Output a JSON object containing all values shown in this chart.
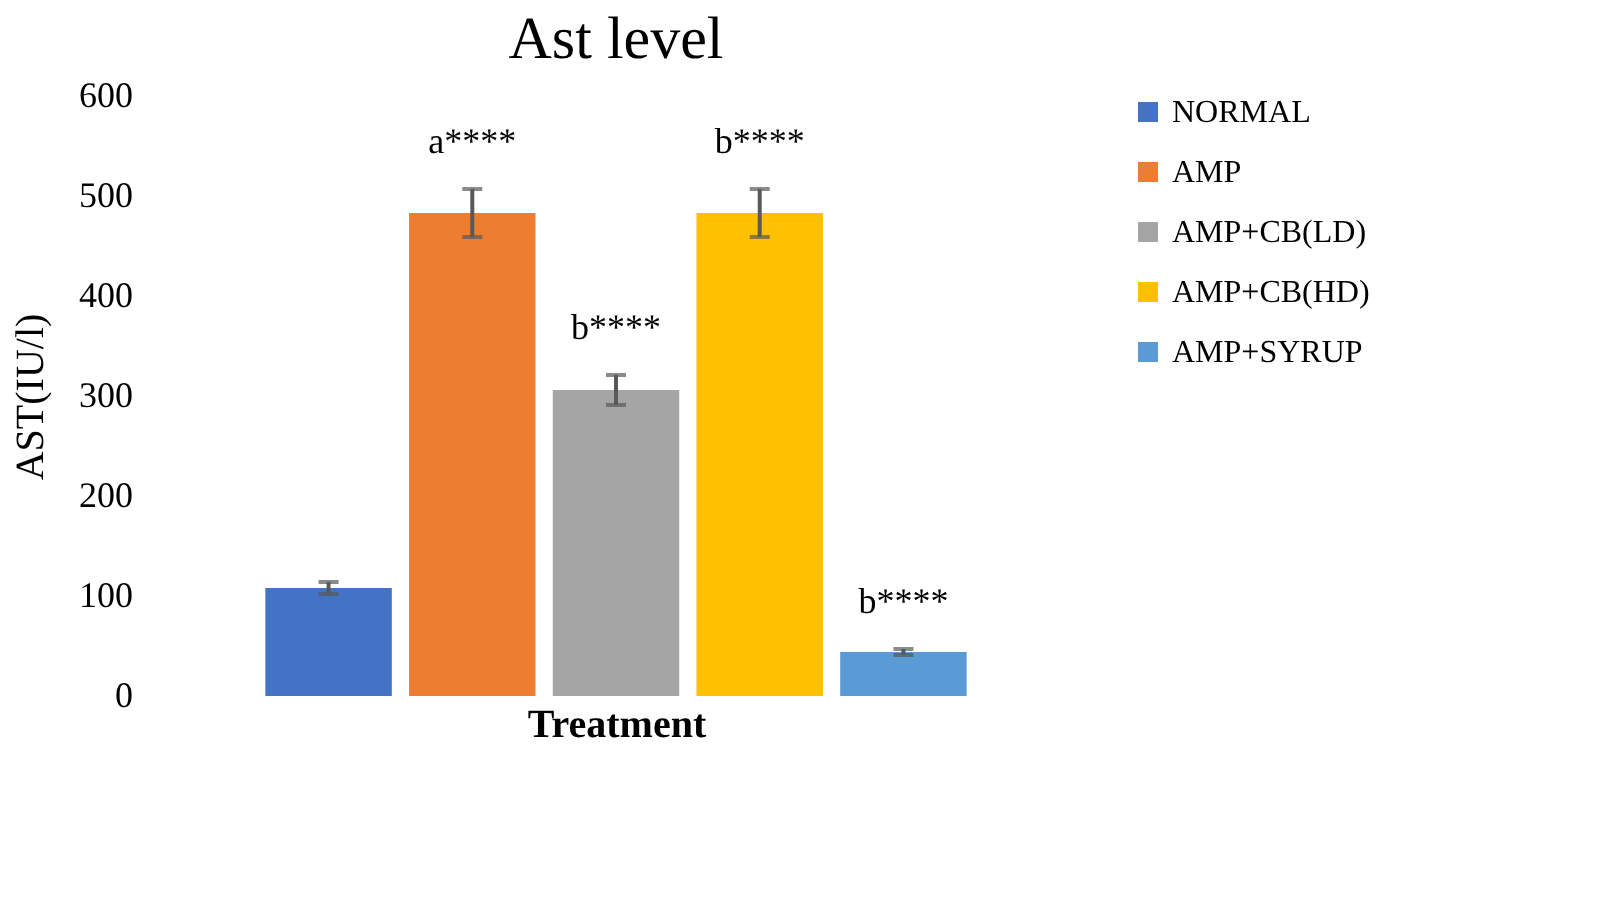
{
  "chart_data": {
    "type": "bar",
    "title": "Ast level",
    "xlabel": "Treatment",
    "ylabel": "AST(IU/l)",
    "categories": [
      null
    ],
    "series": [
      {
        "name": "NORMAL",
        "color": "#4472c4",
        "values": [
          108
        ],
        "errors": [
          6
        ],
        "value_labels": [
          null
        ]
      },
      {
        "name": "AMP",
        "color": "#ed7d31",
        "values": [
          483
        ],
        "errors": [
          24
        ],
        "value_labels": [
          "a****"
        ]
      },
      {
        "name": "AMP+CB(LD)",
        "color": "#a5a5a5",
        "values": [
          306
        ],
        "errors": [
          15
        ],
        "value_labels": [
          "b****"
        ]
      },
      {
        "name": "AMP+CB(HD)",
        "color": "#ffc000",
        "values": [
          483
        ],
        "errors": [
          24
        ],
        "value_labels": [
          "b****"
        ]
      },
      {
        "name": "AMP+SYRUP",
        "color": "#5b9bd5",
        "values": [
          44
        ],
        "errors": [
          3
        ],
        "value_labels": [
          "b****"
        ]
      }
    ],
    "ylim": [
      0,
      600
    ],
    "yticks": [
      0,
      100,
      200,
      300,
      400,
      500,
      600
    ],
    "grid": false,
    "legend": "right"
  }
}
